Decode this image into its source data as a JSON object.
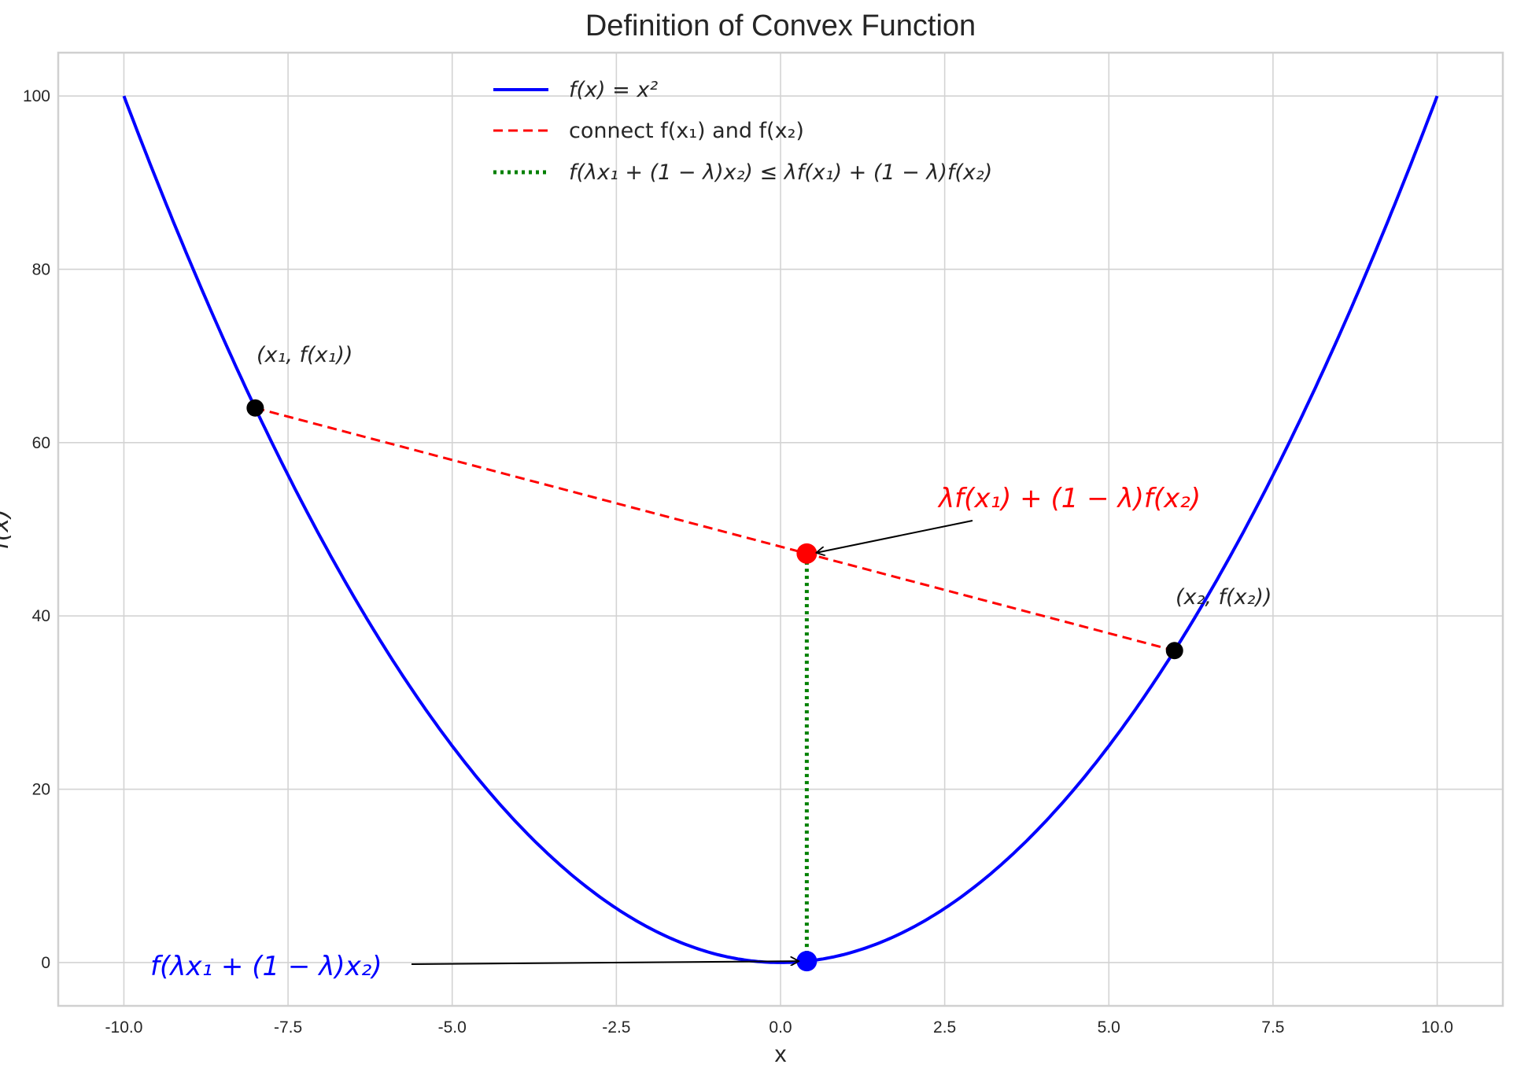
{
  "chart_data": {
    "type": "line",
    "title": "Definition of Convex Function",
    "xlabel": "x",
    "ylabel": "f(x)",
    "xlim": [
      -11,
      11
    ],
    "ylim": [
      -5,
      105
    ],
    "grid": true,
    "legend_position": "top-center",
    "xticks": [
      "-10.0",
      "-7.5",
      "-5.0",
      "-2.5",
      "0.0",
      "2.5",
      "5.0",
      "7.5",
      "10.0"
    ],
    "xtick_values": [
      -10,
      -7.5,
      -5,
      -2.5,
      0,
      2.5,
      5,
      7.5,
      10
    ],
    "yticks": [
      "0",
      "20",
      "40",
      "60",
      "80",
      "100"
    ],
    "ytick_values": [
      0,
      20,
      40,
      60,
      80,
      100
    ],
    "series": [
      {
        "name": "f(x) = x²",
        "kind": "curve",
        "function": "x^2",
        "x_range": [
          -10,
          10
        ],
        "color": "#0000ff",
        "style": "solid"
      },
      {
        "name": "connect f(x₁) and f(x₂)",
        "kind": "segment",
        "x": [
          -8,
          6
        ],
        "y": [
          64,
          36
        ],
        "color": "#ff0000",
        "style": "dashed"
      },
      {
        "name": "f(λx₁ + (1 − λ)x₂) ≤ λf(x₁) + (1 − λ)f(x₂)",
        "kind": "segment",
        "x": [
          0.4,
          0.4
        ],
        "y": [
          0.16,
          47.2
        ],
        "color": "#008000",
        "style": "dotted"
      }
    ],
    "points": [
      {
        "x": -8,
        "y": 64,
        "color": "#000000",
        "label": "(x₁, f(x₁))"
      },
      {
        "x": 6,
        "y": 36,
        "color": "#000000",
        "label": "(x₂, f(x₂))"
      },
      {
        "x": 0.4,
        "y": 47.2,
        "color": "#ff0000"
      },
      {
        "x": 0.4,
        "y": 0.16,
        "color": "#0000ff"
      }
    ],
    "annotations": [
      {
        "text": "λf(x₁) + (1 − λ)f(x₂)",
        "color": "#ff0000",
        "target": [
          0.4,
          47.2
        ]
      },
      {
        "text": "f(λx₁ + (1 − λ)x₂)",
        "color": "#0000ff",
        "target": [
          0.4,
          0.16
        ]
      }
    ]
  }
}
